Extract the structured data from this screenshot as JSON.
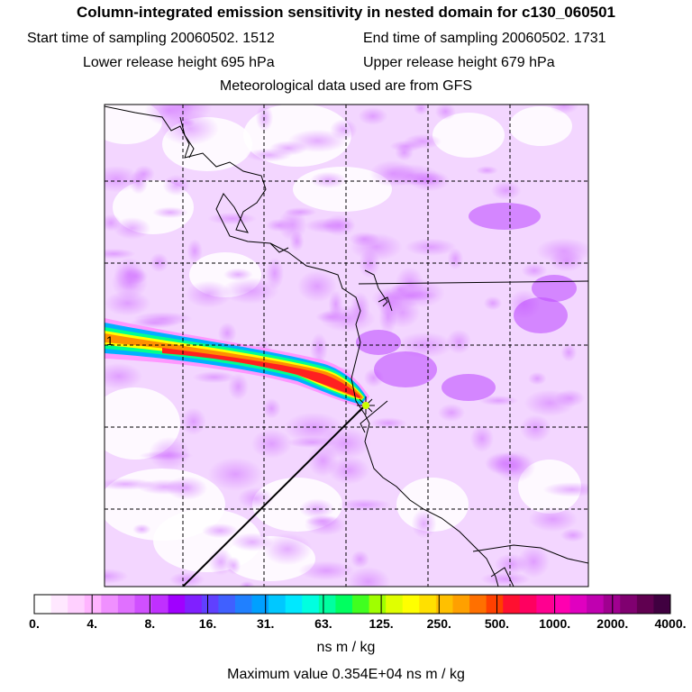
{
  "header": {
    "title": "Column-integrated emission sensitivity in nested domain for c130_060501",
    "start_time": "Start time of sampling 20060502.  1512",
    "end_time": "End time of sampling 20060502.  1731",
    "lower_release": "Lower release height  695 hPa",
    "upper_release": "Upper release height  679 hPa",
    "met_data": "Meteorological data used are from GFS"
  },
  "map": {
    "plume_label": "1",
    "colors": {
      "background_tint": "#e6a6ff",
      "plume_core": "#ff1030",
      "grid": "#000000",
      "coast": "#000000",
      "release_marker": "#ccff00"
    }
  },
  "colorbar": {
    "labels": [
      "0.",
      "4.",
      "8.",
      "16.",
      "31.",
      "63.",
      "125.",
      "250.",
      "500.",
      "1000.",
      "2000.",
      "4000."
    ],
    "colors": [
      "#ffffff",
      "#ffe8ff",
      "#ffd0ff",
      "#ffb4ff",
      "#f090ff",
      "#e070ff",
      "#d050ff",
      "#c030ff",
      "#a000ff",
      "#8020ff",
      "#6040ff",
      "#4060ff",
      "#2080ff",
      "#00a0ff",
      "#00c8ff",
      "#00e8ff",
      "#00ffe0",
      "#00ffa0",
      "#00ff60",
      "#40ff20",
      "#a0ff00",
      "#e0ff00",
      "#ffff00",
      "#ffe000",
      "#ffc000",
      "#ffa000",
      "#ff7000",
      "#ff4000",
      "#ff1030",
      "#ff0060",
      "#ff0090",
      "#ff00b0",
      "#e000c0",
      "#c000b0",
      "#a00090",
      "#800070",
      "#600050",
      "#400040"
    ],
    "units": "ns m / kg",
    "max_value": "Maximum value  0.354E+04 ns m / kg"
  }
}
